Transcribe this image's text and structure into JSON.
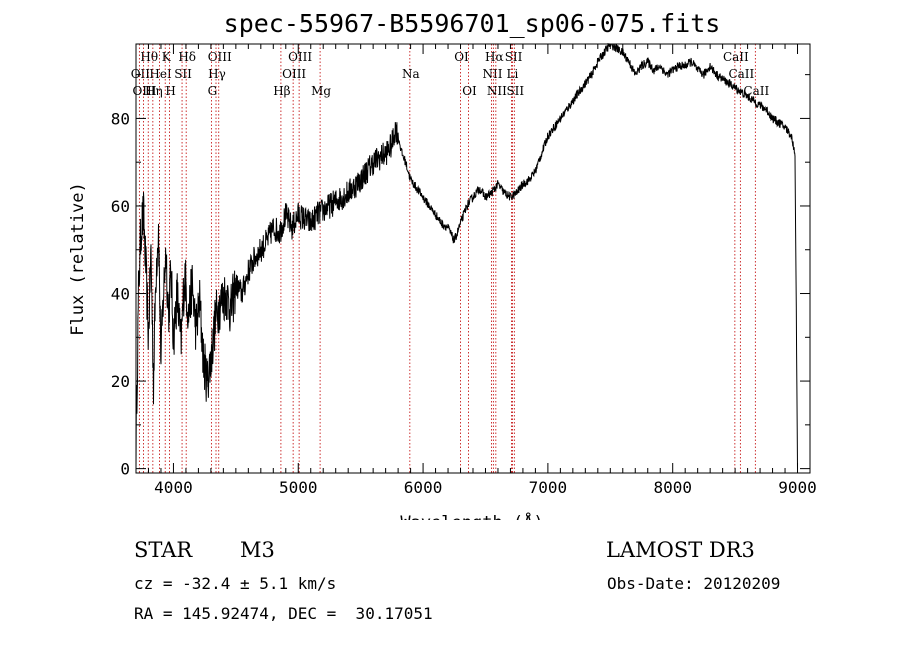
{
  "chart_data": {
    "type": "line",
    "title": "spec-55967-B5596701_sp06-075.fits",
    "xlabel": "Wavelength (Å)",
    "ylabel": "Flux (relative)",
    "xlim": [
      3700,
      9100
    ],
    "ylim": [
      -1,
      97
    ],
    "xticks": [
      4000,
      5000,
      6000,
      7000,
      8000,
      9000
    ],
    "yticks": [
      0,
      20,
      40,
      60,
      80
    ],
    "series": [
      {
        "name": "flux",
        "x": [
          3700,
          3720,
          3740,
          3760,
          3780,
          3800,
          3820,
          3840,
          3860,
          3880,
          3900,
          3920,
          3940,
          3960,
          3980,
          4000,
          4030,
          4060,
          4090,
          4120,
          4150,
          4180,
          4210,
          4240,
          4270,
          4300,
          4340,
          4380,
          4420,
          4460,
          4500,
          4550,
          4600,
          4650,
          4700,
          4750,
          4800,
          4850,
          4900,
          4950,
          5000,
          5050,
          5100,
          5150,
          5200,
          5250,
          5300,
          5400,
          5500,
          5600,
          5700,
          5750,
          5780,
          5800,
          5830,
          5860,
          5900,
          5950,
          6000,
          6050,
          6100,
          6150,
          6200,
          6250,
          6300,
          6350,
          6400,
          6450,
          6500,
          6550,
          6600,
          6650,
          6700,
          6750,
          6800,
          6850,
          6900,
          6950,
          7000,
          7050,
          7100,
          7150,
          7200,
          7250,
          7300,
          7350,
          7400,
          7450,
          7500,
          7550,
          7600,
          7650,
          7700,
          7750,
          7800,
          7850,
          7900,
          7950,
          8000,
          8050,
          8100,
          8150,
          8200,
          8250,
          8300,
          8350,
          8400,
          8450,
          8500,
          8550,
          8600,
          8650,
          8700,
          8750,
          8800,
          8850,
          8900,
          8950,
          8980,
          9000
        ],
        "y": [
          5,
          40,
          55,
          58,
          45,
          30,
          50,
          20,
          45,
          55,
          25,
          40,
          50,
          35,
          45,
          30,
          40,
          28,
          45,
          35,
          42,
          32,
          38,
          25,
          20,
          25,
          35,
          38,
          40,
          36,
          42,
          40,
          45,
          48,
          50,
          52,
          55,
          54,
          58,
          55,
          58,
          57,
          56,
          58,
          59,
          60,
          61,
          63,
          66,
          70,
          72,
          74,
          78,
          76,
          72,
          70,
          66,
          64,
          62,
          60,
          58,
          56,
          55,
          52,
          56,
          60,
          62,
          64,
          62,
          63,
          65,
          63,
          62,
          63,
          65,
          66,
          68,
          72,
          76,
          78,
          80,
          82,
          84,
          86,
          88,
          90,
          93,
          95,
          97,
          96,
          95,
          93,
          90,
          92,
          93,
          91,
          92,
          90,
          91,
          92,
          92,
          93,
          91,
          90,
          92,
          90,
          89,
          88,
          87,
          86,
          85,
          84,
          83,
          82,
          80,
          79,
          78,
          76,
          72,
          0
        ]
      }
    ],
    "line_markers": [
      {
        "label": "Hθ",
        "x": 3798,
        "row": 1
      },
      {
        "label": "OII",
        "x": 3727,
        "row": 2
      },
      {
        "label": "OIII",
        "x": 3760,
        "row": 3
      },
      {
        "label": "K",
        "x": 3934,
        "row": 1
      },
      {
        "label": "HeI",
        "x": 3889,
        "row": 2
      },
      {
        "label": "Hη",
        "x": 3835,
        "row": 3
      },
      {
        "label": "SII",
        "x": 4069,
        "row": 2
      },
      {
        "label": "H",
        "x": 3969,
        "row": 3
      },
      {
        "label": "Hδ",
        "x": 4102,
        "row": 1
      },
      {
        "label": "OIII",
        "x": 4363,
        "row": 1
      },
      {
        "label": "Hγ",
        "x": 4341,
        "row": 2
      },
      {
        "label": "G",
        "x": 4304,
        "row": 3
      },
      {
        "label": "Hβ",
        "x": 4861,
        "row": 3
      },
      {
        "label": "OIII",
        "x": 5007,
        "row": 1
      },
      {
        "label": "OIII",
        "x": 4959,
        "row": 2
      },
      {
        "label": "Mg",
        "x": 5175,
        "row": 3
      },
      {
        "label": "Na",
        "x": 5894,
        "row": 2
      },
      {
        "label": "OI",
        "x": 6300,
        "row": 1
      },
      {
        "label": "OI",
        "x": 6364,
        "row": 3
      },
      {
        "label": "Hα",
        "x": 6563,
        "row": 1
      },
      {
        "label": "NII",
        "x": 6548,
        "row": 2
      },
      {
        "label": "NII",
        "x": 6583,
        "row": 3
      },
      {
        "label": "SII",
        "x": 6717,
        "row": 1
      },
      {
        "label": "Li",
        "x": 6708,
        "row": 2
      },
      {
        "label": "SII",
        "x": 6731,
        "row": 3
      },
      {
        "label": "CaII",
        "x": 8498,
        "row": 1
      },
      {
        "label": "CaII",
        "x": 8542,
        "row": 2
      },
      {
        "label": "CaII",
        "x": 8662,
        "row": 3
      }
    ],
    "line_color": "#000000",
    "marker_color": "#c00000"
  },
  "info": {
    "object_type": "STAR",
    "subclass": "M3",
    "survey": "LAMOST DR3",
    "cz": "cz = -32.4 ± 5.1 km/s",
    "obs_date": "Obs-Date: 20120209",
    "coords": "RA = 145.92474, DEC =  30.17051"
  }
}
